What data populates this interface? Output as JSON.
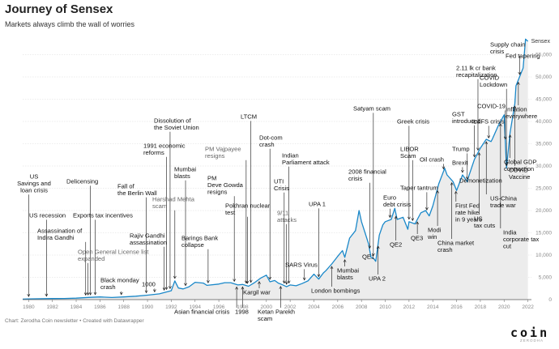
{
  "title": "Journey of Sensex",
  "subtitle": "Markets always climb the wall of worries",
  "footer": "Chart: Zerodha Coin newsletter • Created with Datawrapper",
  "brand": "coin",
  "brand_sub": "ZERODHA",
  "colors": {
    "line": "#1a88c9",
    "area": "#ececec",
    "grid": "#dcdcdc",
    "annotation": "#111111"
  },
  "chart_data": {
    "type": "line",
    "title": "Journey of Sensex",
    "subtitle": "Markets always climb the wall of worries",
    "xlim": [
      1979.5,
      2022.3
    ],
    "ylim": [
      0,
      60000
    ],
    "xticks": [
      1980,
      1982,
      1984,
      1986,
      1988,
      1990,
      1992,
      1994,
      1996,
      1998,
      2000,
      2002,
      2004,
      2006,
      2008,
      2010,
      2012,
      2014,
      2016,
      2018,
      2020,
      2022
    ],
    "xtick_labels": [
      "1980",
      "1982",
      "1984",
      "1986",
      "1988",
      "1990",
      "1992",
      "1994",
      "1996",
      "1998",
      "2000",
      "2002",
      "2004",
      "2006",
      "2008",
      "2010",
      "2012",
      "2014",
      "2016",
      "2018",
      "2020",
      "2022"
    ],
    "yticks": [
      0,
      5000,
      10000,
      15000,
      20000,
      25000,
      30000,
      35000,
      40000,
      45000,
      50000,
      55000
    ],
    "ytick_labels": [
      "0",
      "5,000",
      "10,000",
      "15,000",
      "20,000",
      "25,000",
      "30,000",
      "35,000",
      "40,000",
      "45,000",
      "50,000",
      "55,000"
    ],
    "grid": true,
    "series": [
      {
        "name": "Sensex",
        "x": [
          1979.5,
          1980,
          1981,
          1982,
          1983,
          1984,
          1985,
          1986,
          1987,
          1988,
          1989,
          1990,
          1991,
          1992,
          1992.3,
          1992.6,
          1993,
          1993.5,
          1994,
          1994.7,
          1995,
          1996,
          1996.5,
          1997,
          1997.6,
          1998,
          1998.5,
          1999,
          1999.5,
          2000,
          2000.3,
          2000.7,
          2001,
          2001.3,
          2001.7,
          2002,
          2002.5,
          2003,
          2003.5,
          2004,
          2004.4,
          2004.8,
          2005,
          2005.5,
          2006,
          2006.4,
          2006.6,
          2007,
          2007.5,
          2007.8,
          2008,
          2008.3,
          2008.6,
          2008.8,
          2009,
          2009.2,
          2009.5,
          2009.8,
          2010,
          2010.5,
          2010.8,
          2011,
          2011.5,
          2011.9,
          2012,
          2012.5,
          2013,
          2013.4,
          2013.7,
          2014,
          2014.5,
          2015,
          2015.2,
          2015.7,
          2016,
          2016.5,
          2016.9,
          2017,
          2017.5,
          2018,
          2018.5,
          2018.9,
          2019,
          2019.5,
          2019.9,
          2020,
          2020.2,
          2020.5,
          2020.9,
          2021,
          2021.3,
          2021.6,
          2021.8,
          2022
        ],
        "values": [
          100,
          150,
          200,
          230,
          260,
          320,
          500,
          600,
          480,
          600,
          760,
          1000,
          1300,
          2000,
          4200,
          2600,
          2400,
          2900,
          3900,
          3700,
          3200,
          3500,
          3800,
          3800,
          3300,
          3400,
          3000,
          3800,
          4800,
          5500,
          4000,
          4300,
          3700,
          3400,
          2900,
          3300,
          3100,
          3600,
          4200,
          5700,
          4600,
          6000,
          6500,
          8000,
          9700,
          11000,
          9500,
          13800,
          15500,
          20000,
          17500,
          15000,
          12500,
          9500,
          9300,
          8600,
          14500,
          16800,
          17500,
          18000,
          20500,
          18000,
          18500,
          15800,
          17500,
          17000,
          19500,
          20000,
          18800,
          21000,
          26000,
          29500,
          28000,
          26500,
          24500,
          28000,
          26500,
          27500,
          31500,
          34000,
          36000,
          35500,
          36000,
          39000,
          41000,
          41500,
          29500,
          37500,
          44000,
          48000,
          50000,
          52000,
          58500,
          58000
        ]
      }
    ],
    "series_label": "Sensex",
    "annotations": [
      {
        "text": "US\nSavings and\nloan crisis",
        "x": 1980.0
      },
      {
        "text": "US recession",
        "x": 1981.5
      },
      {
        "text": "Assassination of\nIndira Gandhi",
        "x": 1984.8
      },
      {
        "text": "Delicensing",
        "x": 1985.2
      },
      {
        "text": "Exports tax incentives",
        "x": 1985.6
      },
      {
        "text": "Open General License list\nexpanded",
        "x": 1985.0,
        "grey": true
      },
      {
        "text": "Black monday\ncrash",
        "x": 1987.8
      },
      {
        "text": "Fall of\nthe Berlin Wall",
        "x": 1989.9
      },
      {
        "text": "1000",
        "x": 1990.6
      },
      {
        "text": "Rajiv Gandhi\nassassination",
        "x": 1991.4
      },
      {
        "text": "1991 economic\nreforms",
        "x": 1991.6
      },
      {
        "text": "Dissolution of\nthe Soviet Union",
        "x": 1991.9
      },
      {
        "text": "Harshad Mehta\nscam",
        "x": 1992.3,
        "grey": true
      },
      {
        "text": "Mumbai\nblasts",
        "x": 1993.2
      },
      {
        "text": "Barings Bank\ncollapse",
        "x": 1995.1
      },
      {
        "text": "Asian financial crisis",
        "x": 1997.5
      },
      {
        "text": "PM Vajpayee\nresigns",
        "x": 1998.3,
        "grey": true
      },
      {
        "text": "PM\nDeve Gowda\nresigns",
        "x": 1997.3
      },
      {
        "text": "1998",
        "x": 1998.0
      },
      {
        "text": "Pokhran nuclear\ntest",
        "x": 1998.4
      },
      {
        "text": "LTCM",
        "x": 1998.7
      },
      {
        "text": "Kargil war",
        "x": 1999.4
      },
      {
        "text": "Dot-com\ncrash",
        "x": 2000.3
      },
      {
        "text": "UTI\nCrisis",
        "x": 2001.5
      },
      {
        "text": "Ketan Parekh\nscam",
        "x": 2001.2
      },
      {
        "text": "9/11\nattacks",
        "x": 2001.7,
        "grey": true
      },
      {
        "text": "Indian\nParliament attack",
        "x": 2001.9
      },
      {
        "text": "SARS Virus",
        "x": 2003.2
      },
      {
        "text": "UPA 1",
        "x": 2004.4
      },
      {
        "text": "London bombings",
        "x": 2005.5
      },
      {
        "text": "Mumbai\nblasts",
        "x": 2006.6
      },
      {
        "text": "2008 financial\ncrisis",
        "x": 2008.7
      },
      {
        "text": "Satyam scam",
        "x": 2009.0
      },
      {
        "text": "QE1",
        "x": 2009.0
      },
      {
        "text": "UPA 2",
        "x": 2009.4
      },
      {
        "text": "Euro\ndebt crisis",
        "x": 2010.4
      },
      {
        "text": "QE2",
        "x": 2010.9
      },
      {
        "text": "Greek crisis",
        "x": 2012.0
      },
      {
        "text": "LIBOR\nScam",
        "x": 2012.3
      },
      {
        "text": "Taper tantrum",
        "x": 2013.5
      },
      {
        "text": "QE3",
        "x": 2012.7
      },
      {
        "text": "Oil crash",
        "x": 2014.9
      },
      {
        "text": "Modi\nwin",
        "x": 2014.4
      },
      {
        "text": "China market\ncrash",
        "x": 2015.6
      },
      {
        "text": "Brexit",
        "x": 2016.5
      },
      {
        "text": "Trump",
        "x": 2016.9
      },
      {
        "text": "GST\nintroduced",
        "x": 2017.5
      },
      {
        "text": "Demonetization",
        "x": 2016.9
      },
      {
        "text": "First Fed\nrate hike\nin 9 years",
        "x": 2015.95
      },
      {
        "text": "US\ntax cuts",
        "x": 2017.9
      },
      {
        "text": "US-China\ntrade war",
        "x": 2018.5
      },
      {
        "text": "IL&FS crisis",
        "x": 2018.7
      },
      {
        "text": "2.11 lk cr bank\nrecapitalization",
        "x": 2017.8
      },
      {
        "text": "India\ncorporate tax\ncut",
        "x": 2019.7
      },
      {
        "text": "COVID\nLockdown",
        "x": 2020.2
      },
      {
        "text": "COVID-19",
        "x": 2020.1
      },
      {
        "text": "Inflation\neverywhere",
        "x": 2021.2
      },
      {
        "text": "Global GDP\ncontraction",
        "x": 2020.5
      },
      {
        "text": "COVID\nVaccine",
        "x": 2020.9
      },
      {
        "text": "Supply chain\ncrisis",
        "x": 2021.3
      },
      {
        "text": "Fed tapering",
        "x": 2021.7
      }
    ]
  }
}
